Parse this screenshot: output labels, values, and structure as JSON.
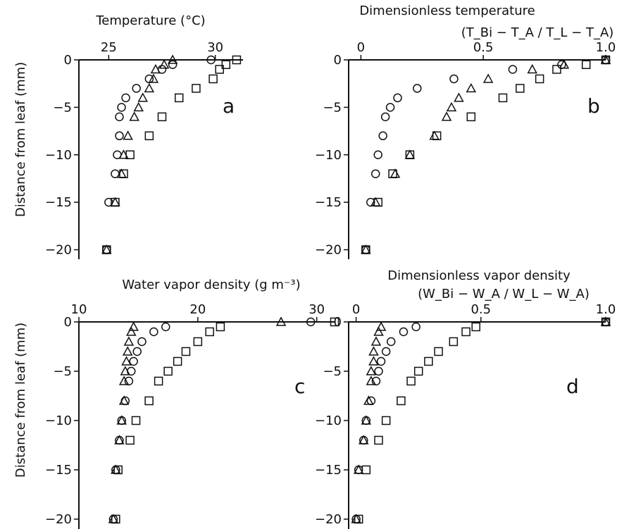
{
  "y_axis_label": "Distance from leaf (mm)",
  "chart_data": [
    {
      "type": "scatter",
      "panel_letter": "a",
      "title": "Temperature (°C)",
      "xlim": [
        23.6,
        31.3
      ],
      "ylim": [
        -21,
        0
      ],
      "x_ticks": [
        25,
        30
      ],
      "y_ticks": [
        0,
        -5,
        -10,
        -15,
        -20
      ],
      "series": [
        {
          "marker": "circle",
          "points": [
            [
              29.8,
              0
            ],
            [
              28.0,
              -0.5
            ],
            [
              27.5,
              -1
            ],
            [
              26.9,
              -2
            ],
            [
              26.3,
              -3
            ],
            [
              25.8,
              -4
            ],
            [
              25.6,
              -5
            ],
            [
              25.5,
              -6
            ],
            [
              25.5,
              -8
            ],
            [
              25.4,
              -10
            ],
            [
              25.3,
              -12
            ],
            [
              25.0,
              -15
            ],
            [
              24.9,
              -20
            ]
          ]
        },
        {
          "marker": "triangle",
          "points": [
            [
              28.0,
              0
            ],
            [
              27.6,
              -0.5
            ],
            [
              27.2,
              -1
            ],
            [
              27.1,
              -2
            ],
            [
              26.9,
              -3
            ],
            [
              26.6,
              -4
            ],
            [
              26.4,
              -5
            ],
            [
              26.2,
              -6
            ],
            [
              25.9,
              -8
            ],
            [
              25.7,
              -10
            ],
            [
              25.6,
              -12
            ],
            [
              25.3,
              -15
            ],
            [
              24.9,
              -20
            ]
          ]
        },
        {
          "marker": "square",
          "points": [
            [
              31.0,
              0
            ],
            [
              30.5,
              -0.5
            ],
            [
              30.2,
              -1
            ],
            [
              29.9,
              -2
            ],
            [
              29.1,
              -3
            ],
            [
              28.3,
              -4
            ],
            [
              27.5,
              -6
            ],
            [
              26.9,
              -8
            ],
            [
              26.0,
              -10
            ],
            [
              25.7,
              -12
            ],
            [
              25.3,
              -15
            ],
            [
              24.9,
              -20
            ]
          ]
        }
      ]
    },
    {
      "type": "scatter",
      "panel_letter": "b",
      "title": "Dimensionless temperature",
      "xlabel": "(T_Bi − T_A / T_L − T_A)",
      "xlim": [
        -0.05,
        1.0
      ],
      "ylim": [
        -21,
        0
      ],
      "x_ticks": [
        0,
        0.5,
        1.0
      ],
      "y_ticks": [
        0,
        -5,
        -10,
        -15,
        -20
      ],
      "series": [
        {
          "marker": "circle",
          "points": [
            [
              1.0,
              0
            ],
            [
              0.82,
              -0.5
            ],
            [
              0.62,
              -1
            ],
            [
              0.38,
              -2
            ],
            [
              0.23,
              -3
            ],
            [
              0.15,
              -4
            ],
            [
              0.12,
              -5
            ],
            [
              0.1,
              -6
            ],
            [
              0.09,
              -8
            ],
            [
              0.07,
              -10
            ],
            [
              0.06,
              -12
            ],
            [
              0.04,
              -15
            ],
            [
              0.02,
              -20
            ]
          ]
        },
        {
          "marker": "triangle",
          "points": [
            [
              1.0,
              0
            ],
            [
              0.83,
              -0.5
            ],
            [
              0.7,
              -1
            ],
            [
              0.52,
              -2
            ],
            [
              0.45,
              -3
            ],
            [
              0.4,
              -4
            ],
            [
              0.37,
              -5
            ],
            [
              0.35,
              -6
            ],
            [
              0.3,
              -8
            ],
            [
              0.2,
              -10
            ],
            [
              0.14,
              -12
            ],
            [
              0.06,
              -15
            ],
            [
              0.02,
              -20
            ]
          ]
        },
        {
          "marker": "square",
          "points": [
            [
              1.0,
              0
            ],
            [
              0.92,
              -0.5
            ],
            [
              0.8,
              -1
            ],
            [
              0.73,
              -2
            ],
            [
              0.65,
              -3
            ],
            [
              0.58,
              -4
            ],
            [
              0.45,
              -6
            ],
            [
              0.31,
              -8
            ],
            [
              0.2,
              -10
            ],
            [
              0.13,
              -12
            ],
            [
              0.07,
              -15
            ],
            [
              0.02,
              -20
            ]
          ]
        }
      ]
    },
    {
      "type": "scatter",
      "panel_letter": "c",
      "title": "Water vapor density (g m⁻³)",
      "xlim": [
        10,
        31.5
      ],
      "ylim": [
        -21,
        0
      ],
      "x_ticks": [
        10,
        20,
        30
      ],
      "y_ticks": [
        0,
        -5,
        -10,
        -15,
        -20
      ],
      "series": [
        {
          "marker": "circle",
          "points": [
            [
              29.5,
              0
            ],
            [
              17.3,
              -0.5
            ],
            [
              16.3,
              -1
            ],
            [
              15.3,
              -2
            ],
            [
              14.9,
              -3
            ],
            [
              14.6,
              -4
            ],
            [
              14.4,
              -5
            ],
            [
              14.2,
              -6
            ],
            [
              13.9,
              -8
            ],
            [
              13.6,
              -10
            ],
            [
              13.4,
              -12
            ],
            [
              13.1,
              -15
            ],
            [
              12.9,
              -20
            ]
          ]
        },
        {
          "marker": "triangle",
          "points": [
            [
              27.0,
              0
            ],
            [
              14.6,
              -0.5
            ],
            [
              14.4,
              -1
            ],
            [
              14.2,
              -2
            ],
            [
              14.1,
              -3
            ],
            [
              14.0,
              -4
            ],
            [
              13.9,
              -5
            ],
            [
              13.8,
              -6
            ],
            [
              13.8,
              -8
            ],
            [
              13.6,
              -10
            ],
            [
              13.4,
              -12
            ],
            [
              13.1,
              -15
            ],
            [
              12.9,
              -20
            ]
          ]
        },
        {
          "marker": "square",
          "points": [
            [
              31.5,
              0
            ],
            [
              21.9,
              -0.5
            ],
            [
              21.0,
              -1
            ],
            [
              20.0,
              -2
            ],
            [
              19.0,
              -3
            ],
            [
              18.3,
              -4
            ],
            [
              17.5,
              -5
            ],
            [
              16.7,
              -6
            ],
            [
              15.9,
              -8
            ],
            [
              14.8,
              -10
            ],
            [
              14.3,
              -12
            ],
            [
              13.3,
              -15
            ],
            [
              13.1,
              -20
            ]
          ]
        }
      ]
    },
    {
      "type": "scatter",
      "panel_letter": "d",
      "title": "Dimensionless vapor density",
      "xlabel": "(W_Bi − W_A / W_L − W_A)",
      "xlim": [
        -0.03,
        1.0
      ],
      "ylim": [
        -21,
        0
      ],
      "x_ticks": [
        0,
        0.5,
        1.0
      ],
      "y_ticks": [
        0,
        -5,
        -10,
        -15,
        -20
      ],
      "series": [
        {
          "marker": "circle",
          "points": [
            [
              1.0,
              0
            ],
            [
              0.24,
              -0.5
            ],
            [
              0.19,
              -1
            ],
            [
              0.14,
              -2
            ],
            [
              0.12,
              -3
            ],
            [
              0.1,
              -4
            ],
            [
              0.09,
              -5
            ],
            [
              0.08,
              -6
            ],
            [
              0.06,
              -8
            ],
            [
              0.04,
              -10
            ],
            [
              0.03,
              -12
            ],
            [
              0.01,
              -15
            ],
            [
              0.0,
              -20
            ]
          ]
        },
        {
          "marker": "triangle",
          "points": [
            [
              1.0,
              0
            ],
            [
              0.1,
              -0.5
            ],
            [
              0.09,
              -1
            ],
            [
              0.08,
              -2
            ],
            [
              0.07,
              -3
            ],
            [
              0.07,
              -4
            ],
            [
              0.06,
              -5
            ],
            [
              0.06,
              -6
            ],
            [
              0.05,
              -8
            ],
            [
              0.04,
              -10
            ],
            [
              0.03,
              -12
            ],
            [
              0.01,
              -15
            ],
            [
              0.0,
              -20
            ]
          ]
        },
        {
          "marker": "square",
          "points": [
            [
              1.0,
              0
            ],
            [
              0.48,
              -0.5
            ],
            [
              0.44,
              -1
            ],
            [
              0.39,
              -2
            ],
            [
              0.33,
              -3
            ],
            [
              0.29,
              -4
            ],
            [
              0.25,
              -5
            ],
            [
              0.22,
              -6
            ],
            [
              0.18,
              -8
            ],
            [
              0.12,
              -10
            ],
            [
              0.09,
              -12
            ],
            [
              0.04,
              -15
            ],
            [
              0.01,
              -20
            ]
          ]
        }
      ]
    }
  ]
}
